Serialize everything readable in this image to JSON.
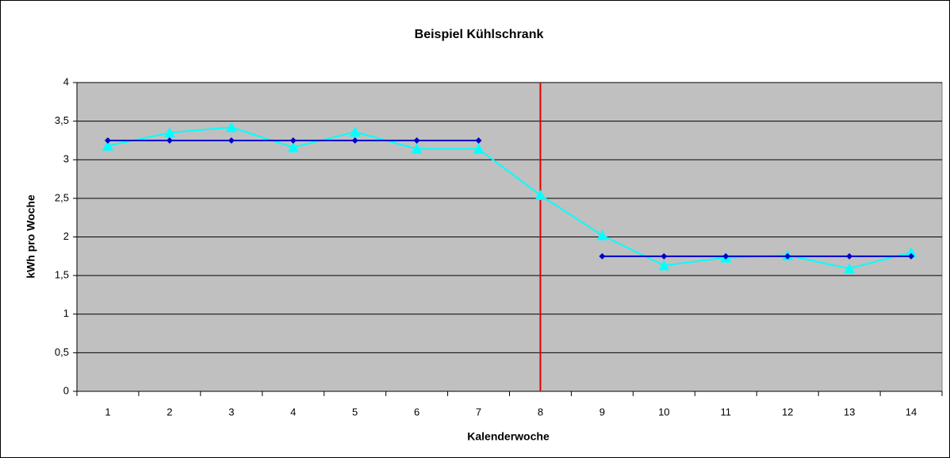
{
  "chart_data": {
    "type": "line",
    "title": "Beispiel Kühlschrank",
    "x_label": "Kalenderwoche",
    "y_label": "kWh pro Woche",
    "categories": [
      "1",
      "2",
      "3",
      "4",
      "5",
      "6",
      "7",
      "8",
      "9",
      "10",
      "11",
      "12",
      "13",
      "14"
    ],
    "series": [
      {
        "color": "#00ffff",
        "marker": "triangle",
        "values": [
          3.18,
          3.35,
          3.42,
          3.16,
          3.36,
          3.14,
          3.14,
          2.54,
          2.02,
          1.63,
          1.73,
          1.76,
          1.59,
          1.8
        ]
      },
      {
        "color": "#0000cc",
        "marker": "diamond",
        "values": [
          3.25,
          3.25,
          3.25,
          3.25,
          3.25,
          3.25,
          3.25,
          null,
          1.75,
          1.75,
          1.75,
          1.75,
          1.75,
          1.75
        ]
      }
    ],
    "vertical_line": {
      "x": "8",
      "color": "#e00000"
    },
    "ylim": [
      0,
      4
    ],
    "yticks": [
      0,
      {
        "value": 0.5,
        "label": "0,5"
      },
      1,
      {
        "value": 1.5,
        "label": "1,5"
      },
      2,
      {
        "value": 2.5,
        "label": "2,5"
      },
      3,
      {
        "value": 3.5,
        "label": "3,5"
      },
      4
    ],
    "grid": true,
    "plot_background": "#c0c0c0"
  }
}
